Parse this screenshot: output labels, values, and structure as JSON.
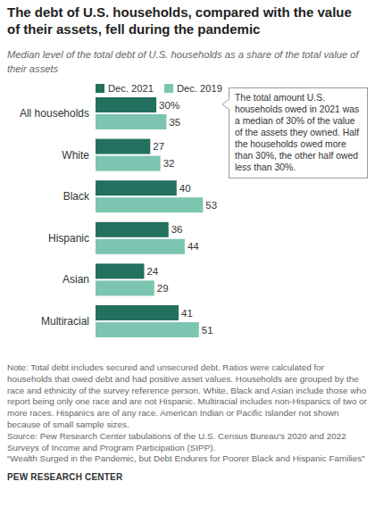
{
  "chart_data": {
    "type": "bar",
    "orientation": "horizontal",
    "title": "The debt of U.S. households, compared with the value of their assets, fell during the pandemic",
    "subtitle": "Median level of the total debt of U.S. households as a share of the total value of their assets",
    "categories": [
      "All households",
      "White",
      "Black",
      "Hispanic",
      "Asian",
      "Multiracial"
    ],
    "series": [
      {
        "name": "Dec. 2021",
        "color": "#24705f",
        "values": [
          30,
          27,
          40,
          36,
          24,
          41
        ],
        "value_labels": [
          "30%",
          "27",
          "40",
          "36",
          "24",
          "41"
        ]
      },
      {
        "name": "Dec. 2019",
        "color": "#7cc5b1",
        "values": [
          35,
          32,
          53,
          44,
          29,
          51
        ]
      }
    ],
    "xlim": [
      0,
      100
    ],
    "data_labels": true,
    "tick_labels": false,
    "legend": "top-left",
    "annotation": "The total amount U.S. households owed in 2021 was a median of 30% of the value of the assets they owned. Half the households owed more than 30%, the other half owed less than 30%.",
    "note": "Note: Total debt includes secured and unsecured debt. Ratios were calculated for households that owed debt and had positive asset values. Households are grouped by the race and ethnicity of the survey reference person. White, Black and Asian include those who report being only one race and are not Hispanic. Multiracial includes non-Hispanics of two or more races. Hispanics are of any race. American Indian or Pacific Islander not shown because of small sample sizes.",
    "source": "Source: Pew Research Center tabulations of the U.S. Census Bureau’s 2020 and 2022 Surveys of Income and Program Participation (SIPP).",
    "report_title": "“Wealth Surged in the Pandemic, but Debt Endures for Poorer Black and Hispanic Families”",
    "credit": "PEW RESEARCH CENTER"
  }
}
